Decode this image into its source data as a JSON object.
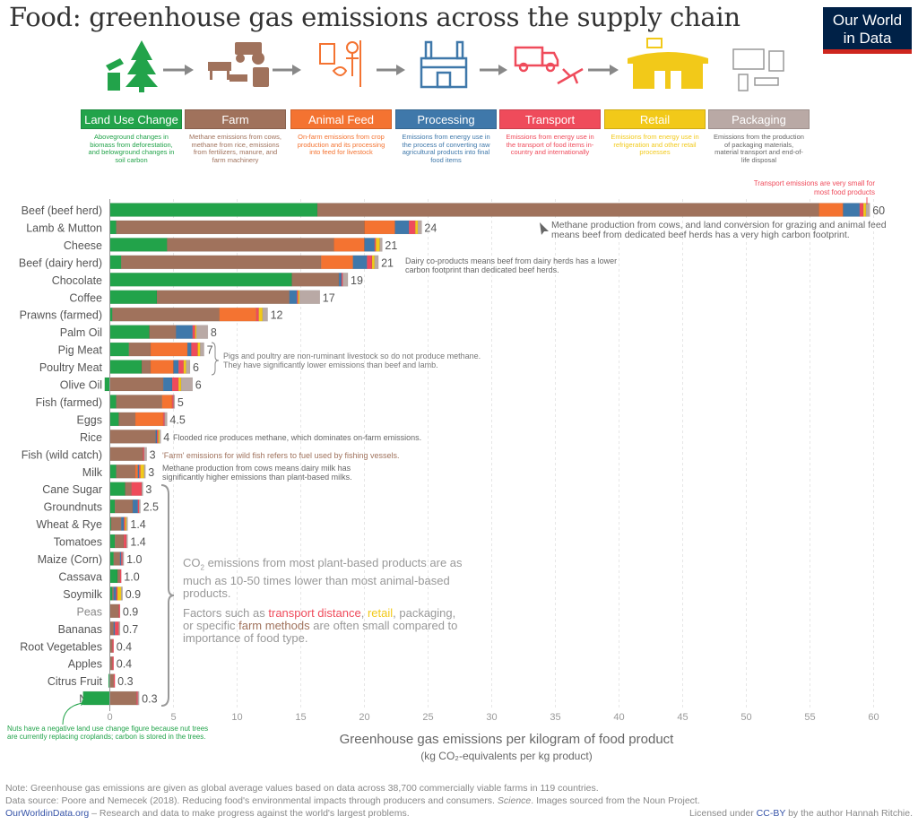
{
  "title": "Food: greenhouse gas emissions across the supply chain",
  "logo": {
    "line1": "Our World",
    "line2": "in Data",
    "bg": "#002147",
    "accent": "#ce261e"
  },
  "stages": [
    {
      "label": "Land Use Change",
      "color": "#22a34a",
      "desc": "Aboveground changes in biomass from deforestation, and belowground changes in soil carbon",
      "icon": "tree-stump-icon"
    },
    {
      "label": "Farm",
      "color": "#a0725c",
      "desc": "Methane emissions from cows, methane from rice, emissions from fertilizers, manure, and farm machinery",
      "icon": "farm-tractor-cows-icon"
    },
    {
      "label": "Animal Feed",
      "color": "#f47331",
      "desc": "On-farm emissions from crop production and its processing into feed for livestock",
      "icon": "farmer-feed-icon"
    },
    {
      "label": "Processing",
      "color": "#3f78aa",
      "desc": "Emissions from energy use in the process of converting raw agricultural products into final food items",
      "icon": "factory-icon"
    },
    {
      "label": "Transport",
      "color": "#ef4b5b",
      "desc": "Emissions from energy use in the transport of food items in-country and internationally",
      "icon": "truck-plane-icon"
    },
    {
      "label": "Retail",
      "color": "#f2c919",
      "desc": "Emissions from energy use in refrigeration and other retail processes",
      "icon": "shop-icon"
    },
    {
      "label": "Packaging",
      "color": "#b9a9a5",
      "desc": "Emissions from the production of packaging materials, material transport and end-of-life disposal",
      "icon": "packages-icon"
    }
  ],
  "chart_data": {
    "type": "bar",
    "orientation": "horizontal",
    "stacked": true,
    "xlabel": "Greenhouse gas emissions per kilogram of food product",
    "xlabel_sub": "(kg CO₂-equivalents per kg product)",
    "xlim": [
      -2.5,
      60
    ],
    "xticks": [
      0,
      5,
      10,
      15,
      20,
      25,
      30,
      35,
      40,
      45,
      50,
      55,
      60
    ],
    "grid": true,
    "legend": "top",
    "categories": [
      "Beef (beef herd)",
      "Lamb & Mutton",
      "Cheese",
      "Beef (dairy herd)",
      "Chocolate",
      "Coffee",
      "Prawns (farmed)",
      "Palm Oil",
      "Pig Meat",
      "Poultry Meat",
      "Olive Oil",
      "Fish (farmed)",
      "Eggs",
      "Rice",
      "Fish (wild catch)",
      "Milk",
      "Cane Sugar",
      "Groundnuts",
      "Wheat & Rye",
      "Tomatoes",
      "Maize (Corn)",
      "Cassava",
      "Soymilk",
      "Peas",
      "Bananas",
      "Root Vegetables",
      "Apples",
      "Citrus Fruit",
      "Nuts"
    ],
    "totals_labels": [
      "60",
      "24",
      "21",
      "21",
      "19",
      "17",
      "12",
      "8",
      "7",
      "6",
      "6",
      "5",
      "4.5",
      "4",
      "3",
      "3",
      "3",
      "2.5",
      "1.4",
      "1.4",
      "1.0",
      "1.0",
      "0.9",
      "0.9",
      "0.7",
      "0.4",
      "0.4",
      "0.3",
      "0.3"
    ],
    "series": [
      {
        "name": "Land Use Change",
        "values": [
          16.3,
          0.5,
          4.5,
          0.9,
          14.3,
          3.7,
          0.2,
          3.1,
          1.5,
          2.5,
          -0.4,
          0.5,
          0.7,
          0,
          0,
          0.5,
          1.2,
          0.4,
          0.1,
          0.4,
          0.3,
          0.6,
          0.2,
          0,
          0,
          0,
          0,
          -0.1,
          -2.1
        ]
      },
      {
        "name": "Farm",
        "values": [
          39.4,
          19.5,
          13.1,
          15.7,
          3.7,
          10.4,
          8.4,
          2.1,
          1.7,
          0.7,
          4.2,
          3.6,
          1.3,
          3.6,
          2.6,
          1.5,
          0.5,
          1.4,
          0.8,
          0.7,
          0.5,
          0.2,
          0.1,
          0.7,
          0.3,
          0.2,
          0.2,
          0.3,
          2.1
        ]
      },
      {
        "name": "Animal Feed",
        "values": [
          1.9,
          2.4,
          2.4,
          2.5,
          0,
          0,
          2.9,
          0,
          2.9,
          1.8,
          0,
          0.8,
          2.2,
          0,
          0,
          0.2,
          0,
          0,
          0,
          0,
          0,
          0,
          0,
          0,
          0,
          0,
          0,
          0,
          0
        ]
      },
      {
        "name": "Processing",
        "values": [
          1.3,
          1.1,
          0.8,
          1.1,
          0.2,
          0.6,
          0,
          1.3,
          0.3,
          0.4,
          0.7,
          0,
          0,
          0.1,
          0,
          0.1,
          0,
          0.4,
          0.2,
          0,
          0.1,
          0,
          0.2,
          0,
          0.1,
          0,
          0,
          0,
          0
        ]
      },
      {
        "name": "Transport",
        "values": [
          0.3,
          0.5,
          0.1,
          0.4,
          0.1,
          0.1,
          0.2,
          0.2,
          0.5,
          0.4,
          0.5,
          0.1,
          0.1,
          0.1,
          0.1,
          0.1,
          0.8,
          0.1,
          0.1,
          0.2,
          0.1,
          0.1,
          0.1,
          0.1,
          0.3,
          0.1,
          0.1,
          0.1,
          0.1
        ]
      },
      {
        "name": "Retail",
        "values": [
          0.2,
          0.2,
          0.3,
          0.2,
          0,
          0.1,
          0.3,
          0.1,
          0.2,
          0.2,
          0.2,
          0,
          0,
          0.1,
          0,
          0.3,
          0,
          0,
          0.1,
          0,
          0,
          0,
          0.3,
          0,
          0,
          0,
          0,
          0,
          0
        ]
      },
      {
        "name": "Packaging",
        "values": [
          0.3,
          0.3,
          0.2,
          0.3,
          0.4,
          1.6,
          0.4,
          0.9,
          0.3,
          0.3,
          0.9,
          0.1,
          0.2,
          0.1,
          0.2,
          0.1,
          0.1,
          0.1,
          0.1,
          0.1,
          0.1,
          0,
          0.1,
          0,
          0.1,
          0,
          0,
          0,
          0.1
        ]
      }
    ]
  },
  "annotations": {
    "transport": "Transport emissions are very small for most food products",
    "beef": "Methane production from cows, and land conversion for grazing and animal feed means beef from dedicated beef herds has a very high carbon footprint.",
    "dairy_beef": "Dairy co-products means beef from dairy herds has a lower carbon footprint than dedicated beef herds.",
    "pigs": "Pigs and poultry are non-ruminant livestock so do not produce methane. They have significantly lower emissions than beef and lamb.",
    "rice": "Flooded rice produces methane, which dominates on-farm emissions.",
    "fish": "'Farm' emissions for wild fish refers to fuel used by fishing vessels.",
    "milk": "Methane production from cows means dairy milk has significantly higher emissions than plant-based milks.",
    "plants_1a": "CO",
    "plants_1sub": "2",
    "plants_1b": " emissions from most plant-based products are as much as 10-50 times lower than most animal-based products.",
    "plants_2a": "Factors such as ",
    "plants_2b": "transport distance",
    "plants_2c": ", ",
    "plants_2d": "retail",
    "plants_2e": ", packaging, or specific ",
    "plants_2f": "farm methods",
    "plants_2g": " are often small compared to importance of food type.",
    "nuts": "Nuts have a negative land use change figure because nut trees are currently replacing croplands; carbon is stored in the trees."
  },
  "footer": {
    "note": "Note: Greenhouse gas emissions are given as global average values based on data across 38,700 commercially viable farms in 119 countries.",
    "source_a": "Data source: Poore and Nemecek (2018). Reducing food's environmental impacts through producers and consumers. ",
    "source_b": "Science",
    "source_c": ". Images sourced from the Noun Project.",
    "site": "OurWorldinData.org",
    "tagline": " – Research and data to make progress against the world's largest problems.",
    "license_a": "Licensed under ",
    "license_b": "CC-BY",
    "license_c": " by the author Hannah Ritchie."
  }
}
